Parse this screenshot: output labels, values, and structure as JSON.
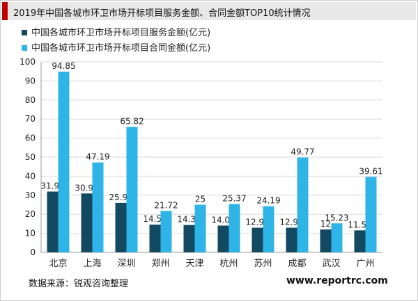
{
  "title": "2019年中国各城市环卫市场开标项目服务金额、合同金额TOP10统计情况",
  "source": "数据来源：锐观咨询整理",
  "website": "www.reportrc.com",
  "colors": {
    "series1": "#134a61",
    "series2": "#2eb4e6",
    "title_accent": "#c00000"
  },
  "chart_data": {
    "type": "bar",
    "categories": [
      "北京",
      "上海",
      "深圳",
      "郑州",
      "天津",
      "杭州",
      "苏州",
      "成都",
      "武汉",
      "广州"
    ],
    "series": [
      {
        "name": "中国各城市环卫市场开标项目服务金额(亿元)",
        "values": [
          31.92,
          30.92,
          25.96,
          14.53,
          14.35,
          14.06,
          12.94,
          12.93,
          12,
          11.54
        ]
      },
      {
        "name": "中国各城市环卫市场开标项目合同金额(亿元)",
        "values": [
          94.85,
          47.19,
          65.82,
          21.72,
          25,
          25.37,
          24.19,
          49.77,
          15.23,
          39.61
        ]
      }
    ],
    "ylim": [
      0,
      100
    ],
    "yticks": [
      0,
      10,
      20,
      30,
      40,
      50,
      60,
      70,
      80,
      90,
      100
    ],
    "grid": true,
    "legend": "top-left"
  }
}
